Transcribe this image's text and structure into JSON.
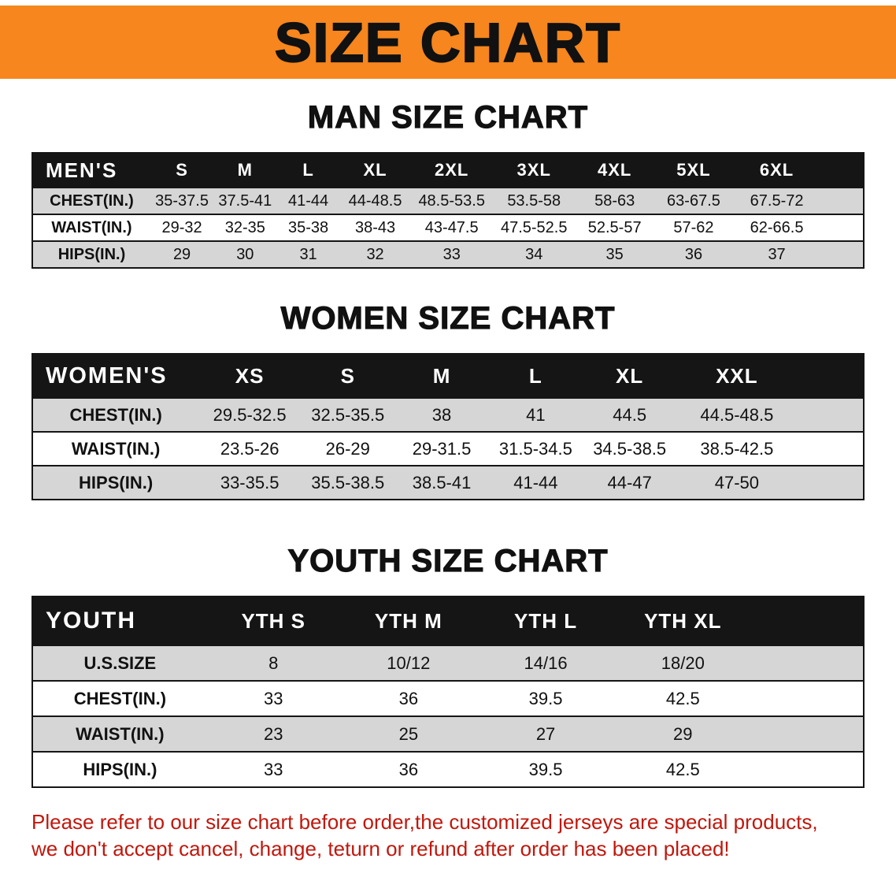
{
  "banner": {
    "title": "SIZE CHART"
  },
  "colors": {
    "banner_orange": "#f6861d",
    "table_header_black": "#151515",
    "row_gray": "#d6d6d6",
    "note_red": "#c1170c"
  },
  "sections": [
    {
      "id": "men",
      "heading": "MAN SIZE CHART",
      "header": [
        "MEN'S",
        "S",
        "M",
        "L",
        "XL",
        "2XL",
        "3XL",
        "4XL",
        "5XL",
        "6XL"
      ],
      "rows": [
        {
          "label": "CHEST(IN.)",
          "values": [
            "35-37.5",
            "37.5-41",
            "41-44",
            "44-48.5",
            "48.5-53.5",
            "53.5-58",
            "58-63",
            "63-67.5",
            "67.5-72"
          ]
        },
        {
          "label": "WAIST(IN.)",
          "values": [
            "29-32",
            "32-35",
            "35-38",
            "38-43",
            "43-47.5",
            "47.5-52.5",
            "52.5-57",
            "57-62",
            "62-66.5"
          ]
        },
        {
          "label": "HIPS(IN.)",
          "values": [
            "29",
            "30",
            "31",
            "32",
            "33",
            "34",
            "35",
            "36",
            "37"
          ]
        }
      ]
    },
    {
      "id": "women",
      "heading": "WOMEN SIZE CHART",
      "header": [
        "WOMEN'S",
        "XS",
        "S",
        "M",
        "L",
        "XL",
        "XXL"
      ],
      "rows": [
        {
          "label": "CHEST(IN.)",
          "values": [
            "29.5-32.5",
            "32.5-35.5",
            "38",
            "41",
            "44.5",
            "44.5-48.5"
          ]
        },
        {
          "label": "WAIST(IN.)",
          "values": [
            "23.5-26",
            "26-29",
            "29-31.5",
            "31.5-34.5",
            "34.5-38.5",
            "38.5-42.5"
          ]
        },
        {
          "label": "HIPS(IN.)",
          "values": [
            "33-35.5",
            "35.5-38.5",
            "38.5-41",
            "41-44",
            "44-47",
            "47-50"
          ]
        }
      ]
    },
    {
      "id": "youth",
      "heading": "YOUTH SIZE CHART",
      "header": [
        "YOUTH",
        "YTH S",
        "YTH M",
        "YTH L",
        "YTH XL"
      ],
      "rows": [
        {
          "label": "U.S.SIZE",
          "values": [
            "8",
            "10/12",
            "14/16",
            "18/20"
          ]
        },
        {
          "label": "CHEST(IN.)",
          "values": [
            "33",
            "36",
            "39.5",
            "42.5"
          ]
        },
        {
          "label": "WAIST(IN.)",
          "values": [
            "23",
            "25",
            "27",
            "29"
          ]
        },
        {
          "label": "HIPS(IN.)",
          "values": [
            "33",
            "36",
            "39.5",
            "42.5"
          ]
        }
      ]
    }
  ],
  "note": {
    "line1": "Please refer to our size chart before order,the customized jerseys are special products,",
    "line2": "we don't accept cancel, change, teturn or refund after order has been placed!"
  }
}
